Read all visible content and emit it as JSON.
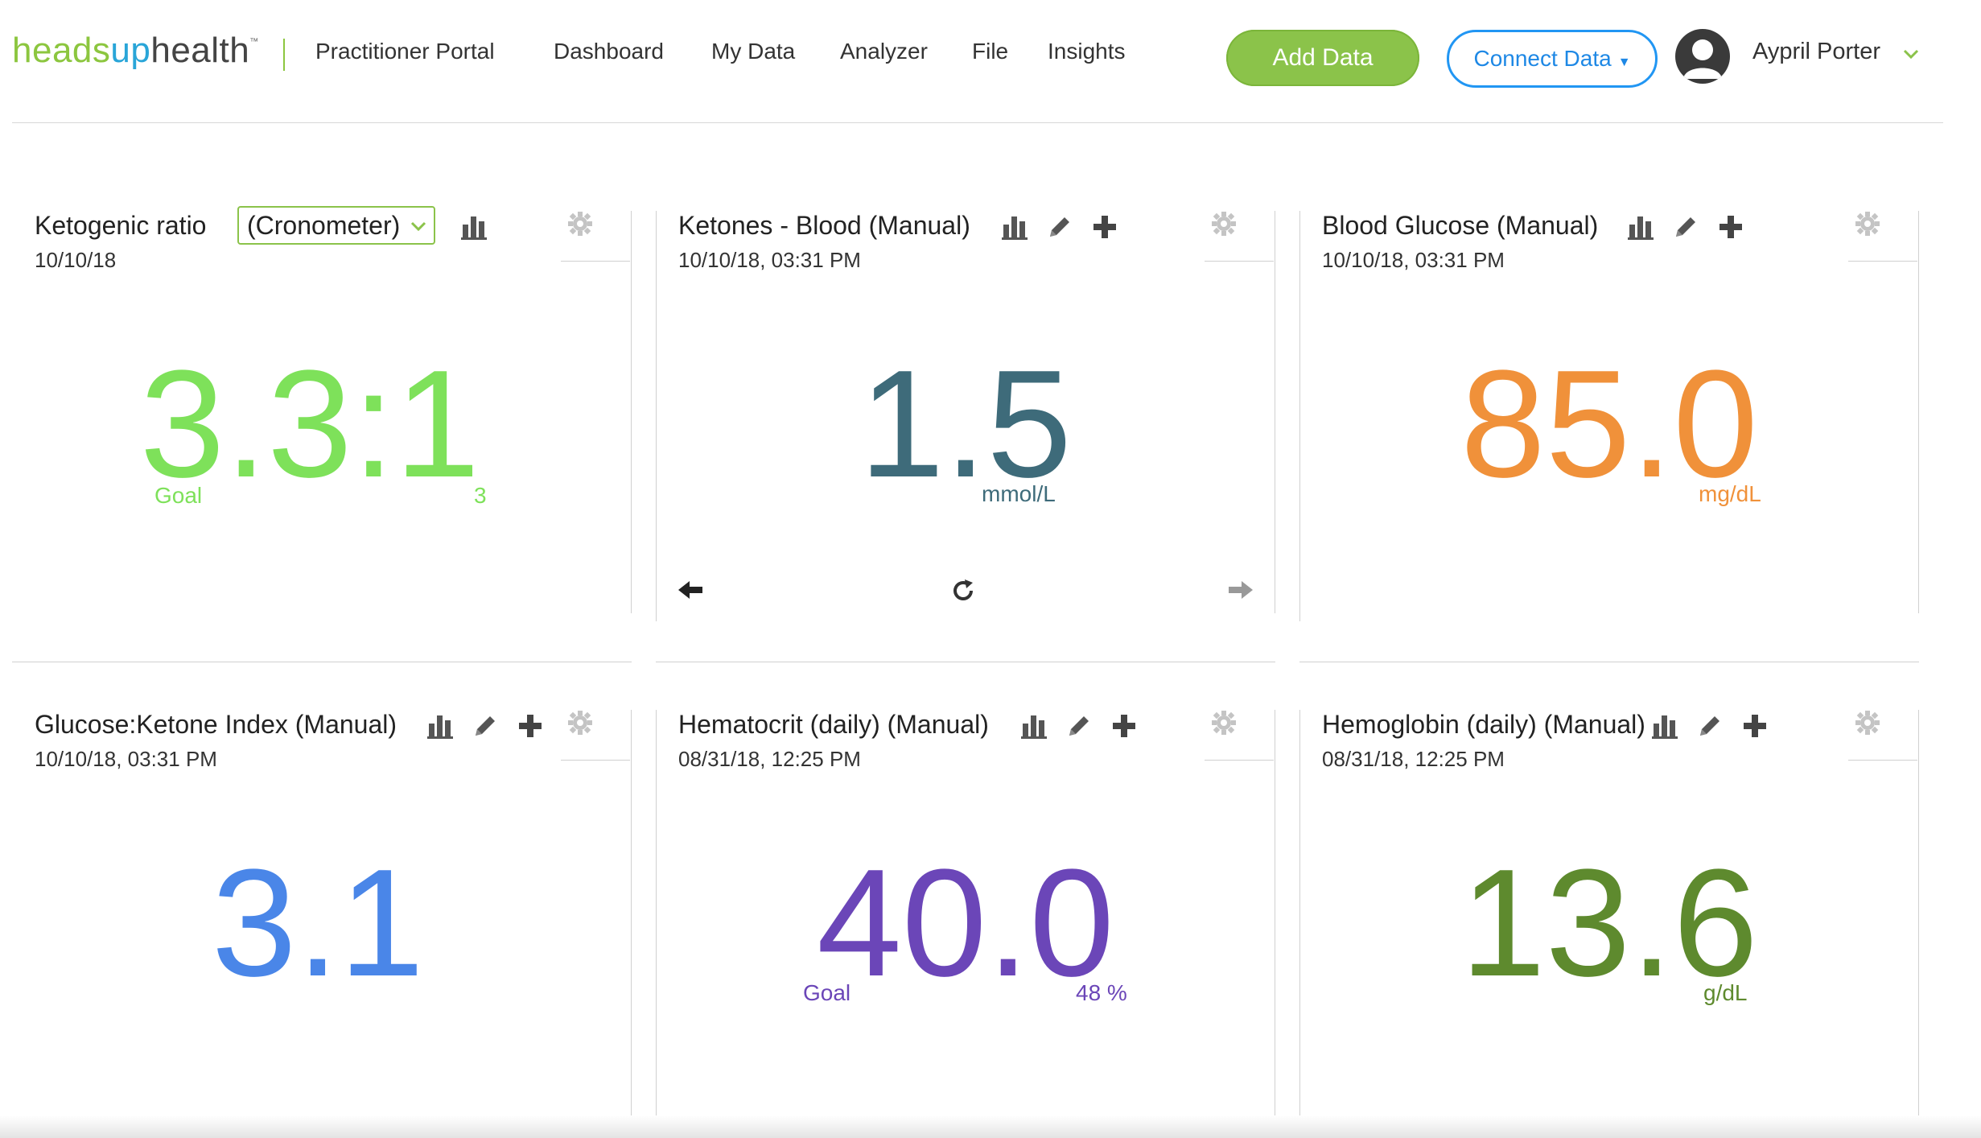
{
  "brand": {
    "logo_part1": "heads",
    "logo_part2": "up",
    "logo_part3": "health",
    "logo_tm": "™"
  },
  "nav": {
    "items": [
      "Practitioner Portal",
      "Dashboard",
      "My Data",
      "Analyzer",
      "File",
      "Insights"
    ]
  },
  "header": {
    "add_data_label": "Add Data",
    "connect_data_label": "Connect Data",
    "user_name": "Aypril Porter"
  },
  "icons": {
    "chart": "bar-chart-icon",
    "edit": "pencil-icon",
    "add": "plus-icon",
    "settings": "gear-icon",
    "prev": "arrow-left-icon",
    "refresh": "refresh-icon",
    "next": "arrow-right-icon",
    "user": "user-avatar-icon",
    "chevron": "chevron-down-icon"
  },
  "widgets": [
    {
      "title": "Ketogenic ratio",
      "source": "(Cronometer)",
      "date": "10/10/18",
      "value": "3.3:1",
      "unit": "",
      "goal_label": "Goal",
      "goal_value": "3",
      "color": "#7ee15a"
    },
    {
      "title": "Ketones - Blood (Manual)",
      "date": "10/10/18, 03:31 PM",
      "value": "1.5",
      "unit": "mmol/L",
      "color": "#3e6b7a"
    },
    {
      "title": "Blood Glucose (Manual)",
      "date": "10/10/18, 03:31 PM",
      "value": "85.0",
      "unit": "mg/dL",
      "color": "#f0913a"
    },
    {
      "title": "Glucose:Ketone Index (Manual)",
      "date": "10/10/18, 03:31 PM",
      "value": "3.1",
      "unit": "",
      "color": "#4a86e8"
    },
    {
      "title": "Hematocrit (daily) (Manual)",
      "date": "08/31/18, 12:25 PM",
      "value": "40.0",
      "unit": "",
      "goal_label": "Goal",
      "goal_value": "48 %",
      "color": "#6b46b8"
    },
    {
      "title": "Hemoglobin (daily) (Manual)",
      "date": "08/31/18, 12:25 PM",
      "value": "13.6",
      "unit": "g/dL",
      "color": "#5e8a2e"
    }
  ]
}
